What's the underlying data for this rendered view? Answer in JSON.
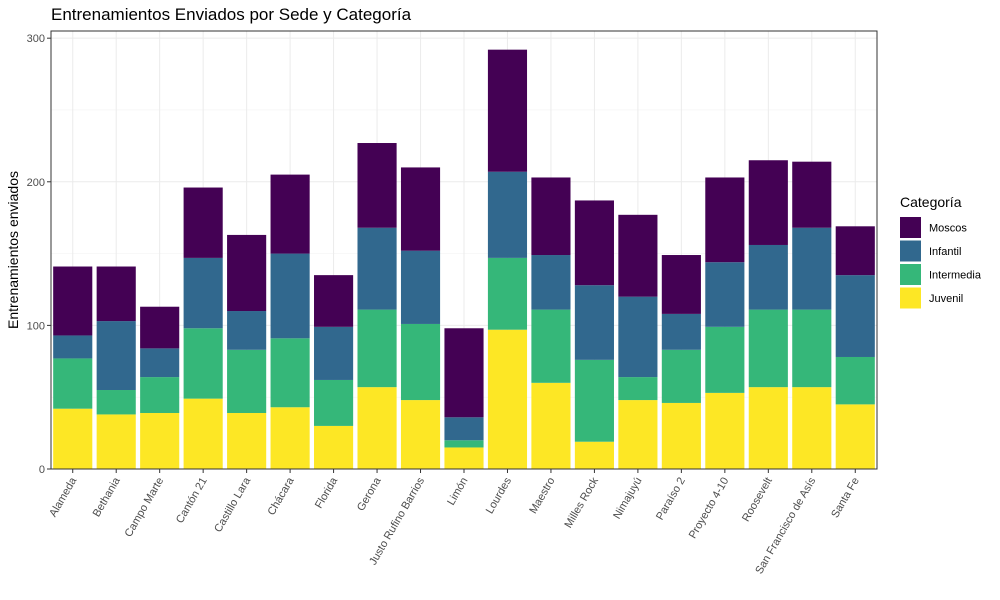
{
  "chart_data": {
    "type": "bar",
    "stacked": true,
    "title": "Entrenamientos Enviados por Sede y Categoría",
    "xlabel": "",
    "ylabel": "Entrenamientos enviados",
    "ylim": [
      0,
      305
    ],
    "yticks": [
      0,
      100,
      200,
      300
    ],
    "grid": true,
    "legend": {
      "title": "Categoría",
      "position": "right"
    },
    "categories": [
      "Alameda",
      "Bethania",
      "Campo Marte",
      "Cantón 21",
      "Castillo Lara",
      "Chácara",
      "Florida",
      "Gerona",
      "Justo Rufino Barrios",
      "Limón",
      "Lourdes",
      "Maestro",
      "Milles Rock",
      "Nimajuyú",
      "Paraíso 2",
      "Proyecto 4-10",
      "Roosevelt",
      "San Francisco de Asís",
      "Santa Fe"
    ],
    "series": [
      {
        "name": "Juvenil",
        "color": "#FDE725",
        "values": [
          42,
          38,
          39,
          49,
          39,
          43,
          30,
          57,
          48,
          15,
          97,
          60,
          19,
          48,
          46,
          53,
          57,
          57,
          45
        ]
      },
      {
        "name": "Intermedia",
        "color": "#35B779",
        "values": [
          35,
          17,
          25,
          49,
          44,
          48,
          32,
          54,
          53,
          5,
          50,
          51,
          57,
          16,
          37,
          46,
          54,
          54,
          33
        ]
      },
      {
        "name": "Infantil",
        "color": "#31688E",
        "values": [
          16,
          48,
          20,
          49,
          27,
          59,
          37,
          57,
          51,
          16,
          60,
          38,
          52,
          56,
          25,
          45,
          45,
          57,
          57
        ]
      },
      {
        "name": "Moscos",
        "color": "#440154",
        "values": [
          48,
          38,
          29,
          49,
          53,
          55,
          36,
          59,
          58,
          62,
          85,
          54,
          59,
          57,
          41,
          59,
          59,
          46,
          34
        ]
      }
    ]
  }
}
